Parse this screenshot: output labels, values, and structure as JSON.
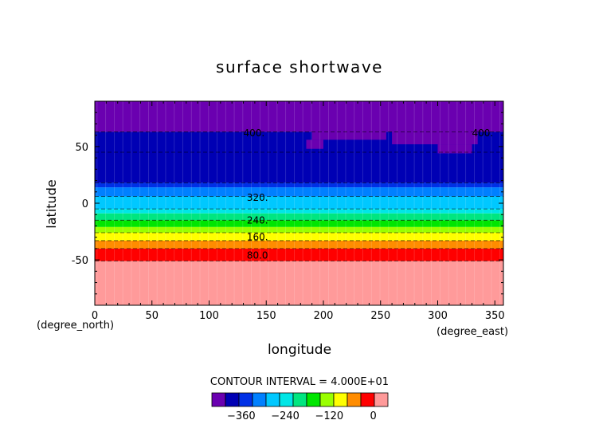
{
  "chart_data": {
    "type": "heatmap",
    "title": "surface shortwave",
    "xlabel": "longitude",
    "ylabel": "latitude",
    "x_unit": "(degree_east)",
    "y_unit": "(degree_north)",
    "xlim": [
      0,
      357.5
    ],
    "ylim": [
      -90,
      90
    ],
    "x_ticks": [
      0,
      50,
      100,
      150,
      200,
      250,
      300,
      350
    ],
    "y_ticks": [
      -50,
      0,
      50
    ],
    "contour_interval_text": "CONTOUR INTERVAL = 4.000E+01",
    "contour_interval": 40,
    "contour_labels": [
      {
        "text": "400.",
        "lon": 130,
        "lat": 62
      },
      {
        "text": "400.",
        "lon": 330,
        "lat": 62
      },
      {
        "text": "320.",
        "lon": 133,
        "lat": 5
      },
      {
        "text": "240.",
        "lon": 133,
        "lat": -15
      },
      {
        "text": "160.",
        "lon": 133,
        "lat": -30
      },
      {
        "text": "80.0",
        "lon": 133,
        "lat": -46
      }
    ],
    "levels": [
      -440,
      -400,
      -360,
      -320,
      -280,
      -240,
      -200,
      -160,
      -120,
      -80,
      -40,
      0,
      40
    ],
    "colors": [
      "#6a00b0",
      "#0000b4",
      "#0030e6",
      "#0080ff",
      "#00c8ff",
      "#00e6e6",
      "#00e680",
      "#00e600",
      "#9aff00",
      "#ffff00",
      "#ff8c00",
      "#ff0000",
      "#ff9a9a"
    ],
    "bands": [
      {
        "lat_min": 63,
        "lat_max": 90,
        "color": "#6a00b0"
      },
      {
        "lat_min": 18,
        "lat_max": 63,
        "color": "#0000b4"
      },
      {
        "lat_min": 14,
        "lat_max": 18,
        "color": "#0030e6"
      },
      {
        "lat_min": 6,
        "lat_max": 14,
        "color": "#0080ff"
      },
      {
        "lat_min": -5,
        "lat_max": 6,
        "color": "#00c8ff"
      },
      {
        "lat_min": -9,
        "lat_max": -5,
        "color": "#00e6e6"
      },
      {
        "lat_min": -15,
        "lat_max": -9,
        "color": "#00e680"
      },
      {
        "lat_min": -21,
        "lat_max": -15,
        "color": "#00e600"
      },
      {
        "lat_min": -26,
        "lat_max": -21,
        "color": "#9aff00"
      },
      {
        "lat_min": -33,
        "lat_max": -26,
        "color": "#ffff00"
      },
      {
        "lat_min": -40,
        "lat_max": -33,
        "color": "#ff8c00"
      },
      {
        "lat_min": -51,
        "lat_max": -40,
        "color": "#ff0000"
      },
      {
        "lat_min": -90,
        "lat_max": -51,
        "color": "#ff9a9a"
      }
    ],
    "contour_lines_lat": [
      63,
      45,
      18,
      6,
      -5,
      -15,
      -26,
      -33,
      -40,
      -51
    ],
    "colorbar_ticks": [
      {
        "text": "−360",
        "value": -360
      },
      {
        "text": "−240",
        "value": -240
      },
      {
        "text": "−120",
        "value": -120
      },
      {
        "text": "0",
        "value": 0
      }
    ],
    "grid": false
  }
}
